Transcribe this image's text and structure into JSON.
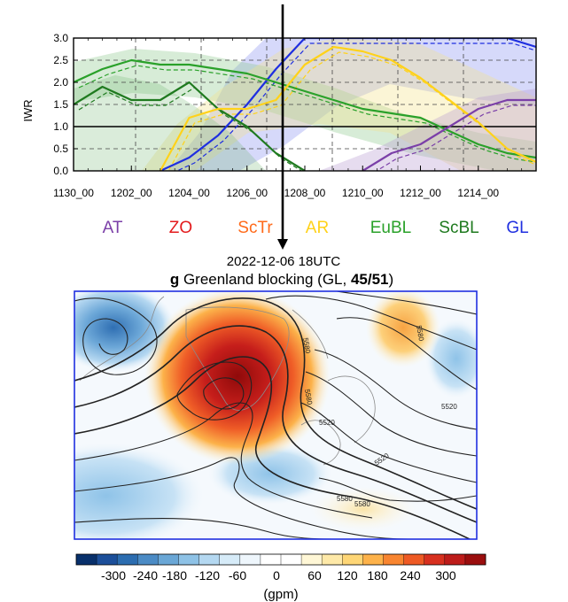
{
  "colors": {
    "AT": "#7b3fa8",
    "ZO": "#e31a1c",
    "ScTr": "#ff6a1a",
    "AR": "#ffd21a",
    "EuBL": "#2aa12a",
    "ScBL": "#1f7a1f",
    "GL": "#1f2fe0"
  },
  "chart_data": [
    {
      "type": "line",
      "ylabel": "IWR",
      "xlabel": "",
      "ylim": [
        0,
        3.0
      ],
      "yticks": [
        "0.0",
        "0.5",
        "1.0",
        "1.5",
        "2.0",
        "2.5",
        "3.0"
      ],
      "xticks": [
        "1130_00",
        "1202_00",
        "1204_00",
        "1206_00",
        "1208_00",
        "1210_00",
        "1212_00",
        "1214_00"
      ],
      "x": [
        0,
        1,
        2,
        3,
        4,
        5,
        6,
        7,
        8,
        9,
        10,
        11,
        12,
        13,
        14,
        15,
        16
      ],
      "threshold": 1.0,
      "series": [
        {
          "name": "GL",
          "color": "#1f2fe0",
          "values": [
            null,
            null,
            null,
            0.0,
            0.3,
            0.8,
            1.5,
            2.3,
            3.0,
            3.0,
            3.0,
            3.0,
            3.0,
            3.0,
            3.0,
            3.0,
            2.8
          ]
        },
        {
          "name": "EuBL",
          "color": "#2aa12a",
          "values": [
            2.0,
            2.3,
            2.5,
            2.4,
            2.4,
            2.3,
            2.2,
            2.0,
            1.8,
            1.6,
            1.4,
            1.3,
            1.2,
            0.9,
            0.6,
            0.4,
            0.3
          ]
        },
        {
          "name": "ScBL",
          "color": "#1f7a1f",
          "values": [
            1.5,
            1.9,
            1.6,
            1.6,
            2.0,
            1.4,
            1.0,
            0.4,
            0.0,
            null,
            null,
            null,
            null,
            null,
            null,
            null,
            null
          ]
        },
        {
          "name": "AR",
          "color": "#ffd21a",
          "values": [
            null,
            null,
            null,
            0.0,
            1.2,
            1.4,
            1.4,
            1.6,
            2.4,
            2.8,
            2.7,
            2.5,
            2.1,
            1.6,
            1.1,
            0.5,
            0.2
          ]
        },
        {
          "name": "AT",
          "color": "#7b3fa8",
          "values": [
            null,
            null,
            null,
            null,
            null,
            null,
            null,
            null,
            null,
            null,
            0.0,
            0.4,
            0.6,
            1.0,
            1.4,
            1.6,
            1.6
          ]
        }
      ],
      "vline_label": "2022-12-06 18UTC"
    },
    {
      "type": "heatmap",
      "time_label": "2022-12-06 18UTC",
      "panel_letter": "g",
      "title_main": "Greenland blocking",
      "title_code": "(GL, ",
      "title_count": "45/51",
      "title_close": ")",
      "contour_labels": [
        "5580",
        "5520",
        "5580",
        "5520",
        "5580",
        "5580",
        "5520",
        "5580"
      ],
      "colorbar_ticks": [
        "-300",
        "-240",
        "-180",
        "-120",
        "-60",
        "0",
        "60",
        "120",
        "180",
        "240",
        "300"
      ],
      "colorbar_unit": "(gpm)",
      "colorbar_colors": [
        "#08306b",
        "#1c4f9a",
        "#2c6db0",
        "#4b8bc5",
        "#6aa7d6",
        "#8ec2e6",
        "#b4d8f1",
        "#d6ebf8",
        "#eef6fc",
        "#ffffff",
        "#ffffff",
        "#fff7d6",
        "#fee9a8",
        "#fed676",
        "#fdb24a",
        "#f88530",
        "#ee5a24",
        "#d7301f",
        "#bd1c1a",
        "#9b0e0e"
      ]
    }
  ],
  "legend": [
    {
      "label": "AT",
      "key": "AT"
    },
    {
      "label": "ZO",
      "key": "ZO"
    },
    {
      "label": "ScTr",
      "key": "ScTr"
    },
    {
      "label": "AR",
      "key": "AR"
    },
    {
      "label": "EuBL",
      "key": "EuBL"
    },
    {
      "label": "ScBL",
      "key": "ScBL"
    },
    {
      "label": "GL",
      "key": "GL"
    }
  ]
}
